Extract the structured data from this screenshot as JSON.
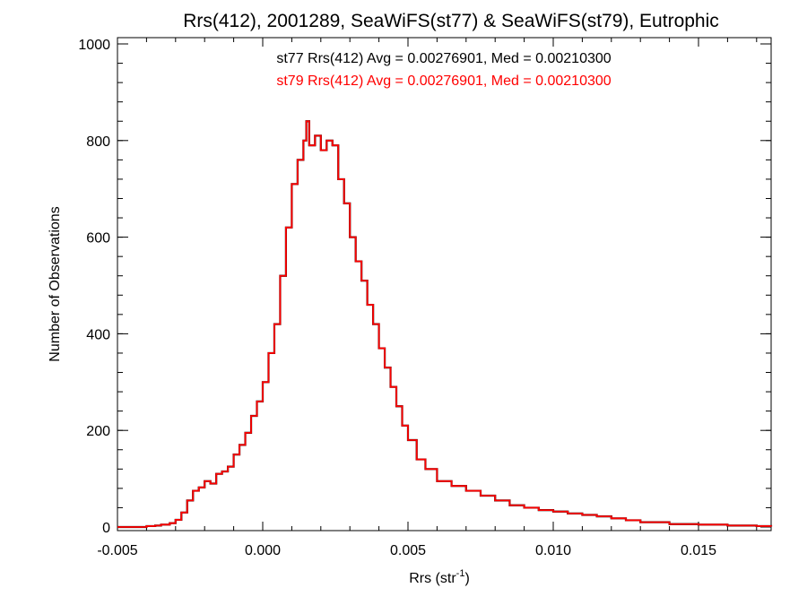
{
  "chart_data": {
    "type": "histogram",
    "title": "Rrs(412), 2001289, SeaWiFS(st77) & SeaWiFS(st79), Eutrophic",
    "xlabel_base": "Rrs (str",
    "xlabel_sup": "-1",
    "xlabel_close": ")",
    "ylabel": "Number of Observations",
    "xlim": [
      -0.005,
      0.0175
    ],
    "ylim": [
      0,
      1000
    ],
    "x_ticks": [
      -0.005,
      0.0,
      0.005,
      0.01,
      0.015
    ],
    "x_tick_labels": [
      "-0.005",
      "0.000",
      "0.005",
      "0.010",
      "0.015"
    ],
    "y_ticks": [
      0,
      200,
      400,
      600,
      800,
      1000
    ],
    "y_tick_labels": [
      "0",
      "200",
      "400",
      "600",
      "800",
      "1000"
    ],
    "annotations": [
      {
        "text": "st77 Rrs(412) Avg = 0.00276901, Med = 0.00210300",
        "color": "#000000"
      },
      {
        "text": "st79 Rrs(412) Avg = 0.00276901, Med = 0.00210300",
        "color": "#ff0000"
      }
    ],
    "series": [
      {
        "color_black": "#000000",
        "color_red": "#ff0000",
        "points": [
          [
            -0.005,
            0
          ],
          [
            -0.0045,
            0
          ],
          [
            -0.004,
            2
          ],
          [
            -0.0037,
            3
          ],
          [
            -0.0035,
            5
          ],
          [
            -0.0032,
            8
          ],
          [
            -0.003,
            15
          ],
          [
            -0.0028,
            30
          ],
          [
            -0.0026,
            55
          ],
          [
            -0.0024,
            75
          ],
          [
            -0.0022,
            82
          ],
          [
            -0.002,
            95
          ],
          [
            -0.0018,
            90
          ],
          [
            -0.0016,
            110
          ],
          [
            -0.0014,
            115
          ],
          [
            -0.0012,
            125
          ],
          [
            -0.001,
            150
          ],
          [
            -0.0008,
            170
          ],
          [
            -0.0006,
            195
          ],
          [
            -0.0004,
            230
          ],
          [
            -0.0002,
            260
          ],
          [
            0.0,
            300
          ],
          [
            0.0002,
            360
          ],
          [
            0.0004,
            420
          ],
          [
            0.0006,
            520
          ],
          [
            0.0008,
            620
          ],
          [
            0.001,
            710
          ],
          [
            0.0012,
            760
          ],
          [
            0.0014,
            800
          ],
          [
            0.0015,
            840
          ],
          [
            0.0016,
            790
          ],
          [
            0.0018,
            810
          ],
          [
            0.002,
            780
          ],
          [
            0.0022,
            800
          ],
          [
            0.0024,
            790
          ],
          [
            0.0026,
            720
          ],
          [
            0.0028,
            670
          ],
          [
            0.003,
            600
          ],
          [
            0.0032,
            550
          ],
          [
            0.0034,
            510
          ],
          [
            0.0036,
            460
          ],
          [
            0.0038,
            420
          ],
          [
            0.004,
            370
          ],
          [
            0.0042,
            330
          ],
          [
            0.0044,
            290
          ],
          [
            0.0046,
            250
          ],
          [
            0.0048,
            210
          ],
          [
            0.005,
            180
          ],
          [
            0.0053,
            140
          ],
          [
            0.0056,
            120
          ],
          [
            0.006,
            95
          ],
          [
            0.0065,
            85
          ],
          [
            0.007,
            75
          ],
          [
            0.0075,
            65
          ],
          [
            0.008,
            55
          ],
          [
            0.0085,
            45
          ],
          [
            0.009,
            40
          ],
          [
            0.0095,
            35
          ],
          [
            0.01,
            32
          ],
          [
            0.0105,
            28
          ],
          [
            0.011,
            25
          ],
          [
            0.0115,
            22
          ],
          [
            0.012,
            18
          ],
          [
            0.0125,
            14
          ],
          [
            0.013,
            10
          ],
          [
            0.014,
            6
          ],
          [
            0.015,
            5
          ],
          [
            0.016,
            3
          ],
          [
            0.017,
            2
          ],
          [
            0.0175,
            1
          ]
        ]
      }
    ]
  }
}
